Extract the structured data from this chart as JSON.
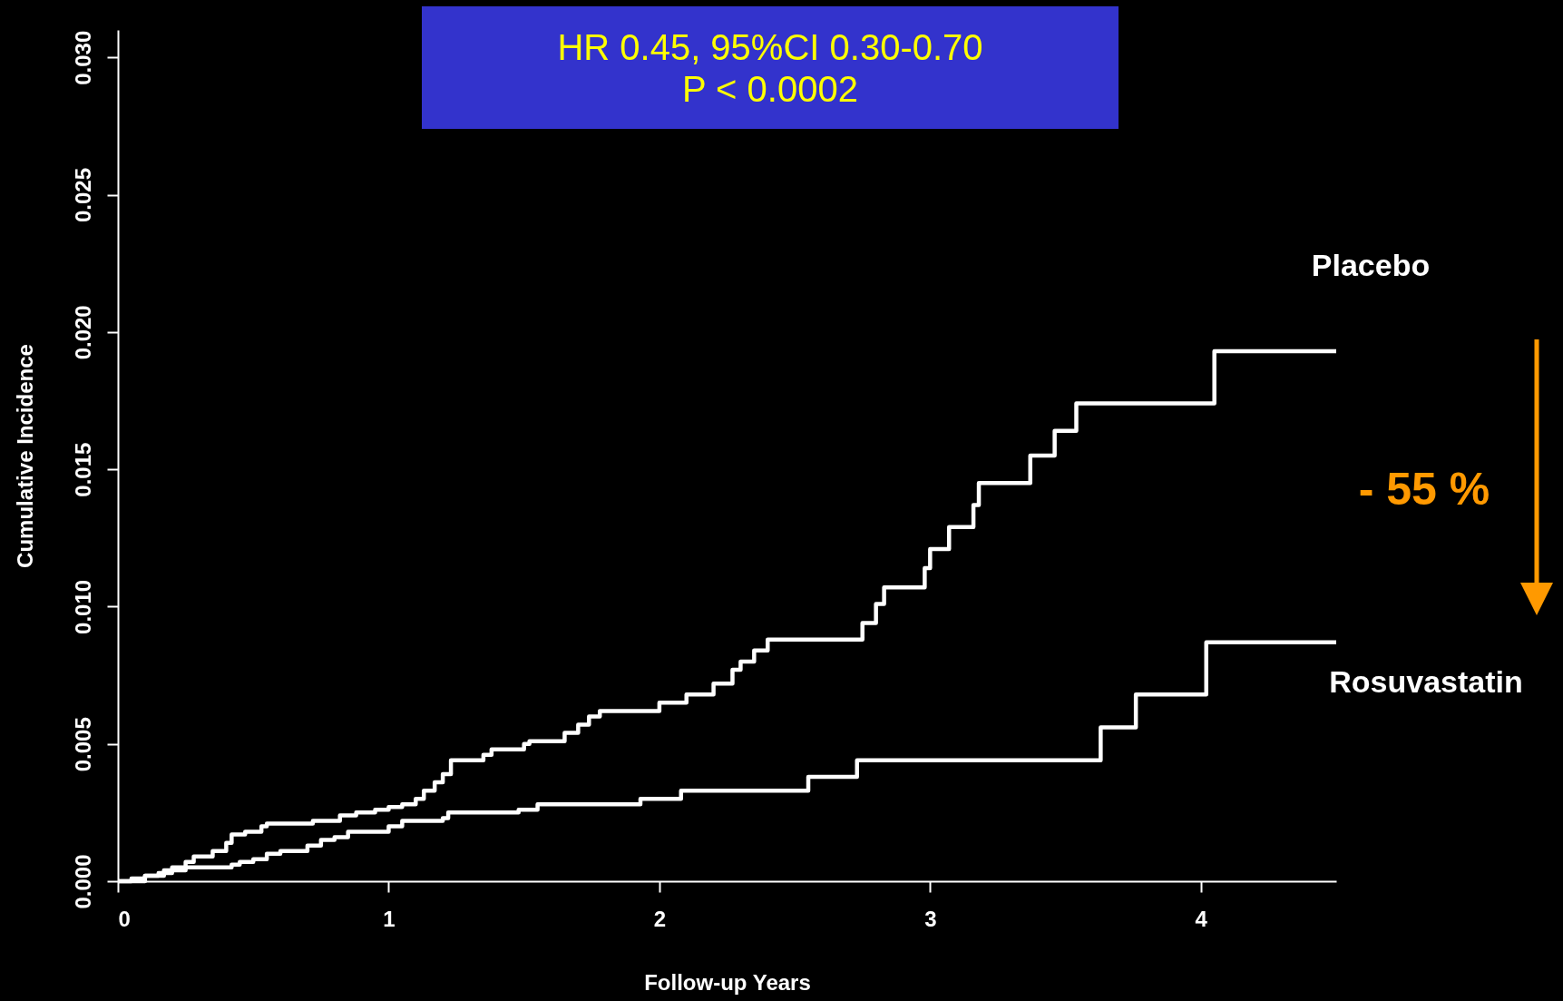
{
  "chart_data": {
    "type": "step",
    "xlabel": "Follow-up Years",
    "ylabel": "Cumulative Incidence",
    "annotations": [
      "HR 0.45, 95%CI 0.30-0.70",
      "P < 0.0002",
      "- 55 %"
    ],
    "xlim": [
      0,
      4.5
    ],
    "xticks": [
      0,
      1,
      2,
      3,
      4
    ],
    "ylim": [
      0,
      0.031
    ],
    "yticks": [
      {
        "value": 0,
        "label": "0.000"
      },
      {
        "value": 0.005,
        "label": "0.005"
      },
      {
        "value": 0.01,
        "label": "0.010"
      },
      {
        "value": 0.015,
        "label": "0.015"
      },
      {
        "value": 0.02,
        "label": "0.020"
      },
      {
        "value": 0.025,
        "label": "0.025"
      },
      {
        "value": 0.03,
        "label": "0.030"
      }
    ],
    "grid": false,
    "legend": false,
    "series": [
      {
        "name": "Placebo",
        "color": "#ffffff",
        "x": [
          0,
          0.1,
          0.17,
          0.25,
          0.28,
          0.35,
          0.4,
          0.42,
          0.47,
          0.53,
          0.55,
          0.72,
          0.82,
          0.88,
          0.95,
          1.0,
          1.05,
          1.1,
          1.13,
          1.17,
          1.2,
          1.23,
          1.35,
          1.38,
          1.5,
          1.52,
          1.65,
          1.7,
          1.74,
          1.78,
          2.0,
          2.1,
          2.2,
          2.27,
          2.3,
          2.35,
          2.4,
          2.75,
          2.8,
          2.83,
          2.98,
          3.0,
          3.07,
          3.16,
          3.18,
          3.37,
          3.46,
          3.54,
          4.05,
          4.5
        ],
        "values": [
          0,
          0.0002,
          0.0004,
          0.0007,
          0.0009,
          0.0011,
          0.0014,
          0.0017,
          0.0018,
          0.002,
          0.0021,
          0.0022,
          0.0024,
          0.0025,
          0.0026,
          0.0027,
          0.0028,
          0.003,
          0.0033,
          0.0036,
          0.0039,
          0.0044,
          0.0046,
          0.0048,
          0.005,
          0.0051,
          0.0054,
          0.0057,
          0.006,
          0.0062,
          0.0065,
          0.0068,
          0.0072,
          0.0077,
          0.008,
          0.0084,
          0.0088,
          0.0094,
          0.0101,
          0.0107,
          0.0114,
          0.0121,
          0.0129,
          0.0137,
          0.0145,
          0.0155,
          0.0164,
          0.0174,
          0.0193,
          0.0193
        ]
      },
      {
        "name": "Rosuvastatin",
        "color": "#ffffff",
        "x": [
          0,
          0.05,
          0.1,
          0.15,
          0.2,
          0.42,
          0.45,
          0.5,
          0.55,
          0.6,
          0.7,
          0.75,
          0.8,
          0.85,
          1.0,
          1.05,
          1.2,
          1.22,
          1.48,
          1.55,
          1.93,
          2.08,
          2.55,
          2.73,
          3.63,
          3.76,
          4.02,
          4.5
        ],
        "values": [
          0,
          0.0001,
          0.0002,
          0.0003,
          0.0005,
          0.0006,
          0.0007,
          0.0008,
          0.001,
          0.0011,
          0.0013,
          0.0015,
          0.0016,
          0.0018,
          0.002,
          0.0022,
          0.0023,
          0.0025,
          0.0026,
          0.0028,
          0.003,
          0.0033,
          0.0038,
          0.0044,
          0.0056,
          0.0068,
          0.0087,
          0.0087
        ]
      }
    ]
  }
}
